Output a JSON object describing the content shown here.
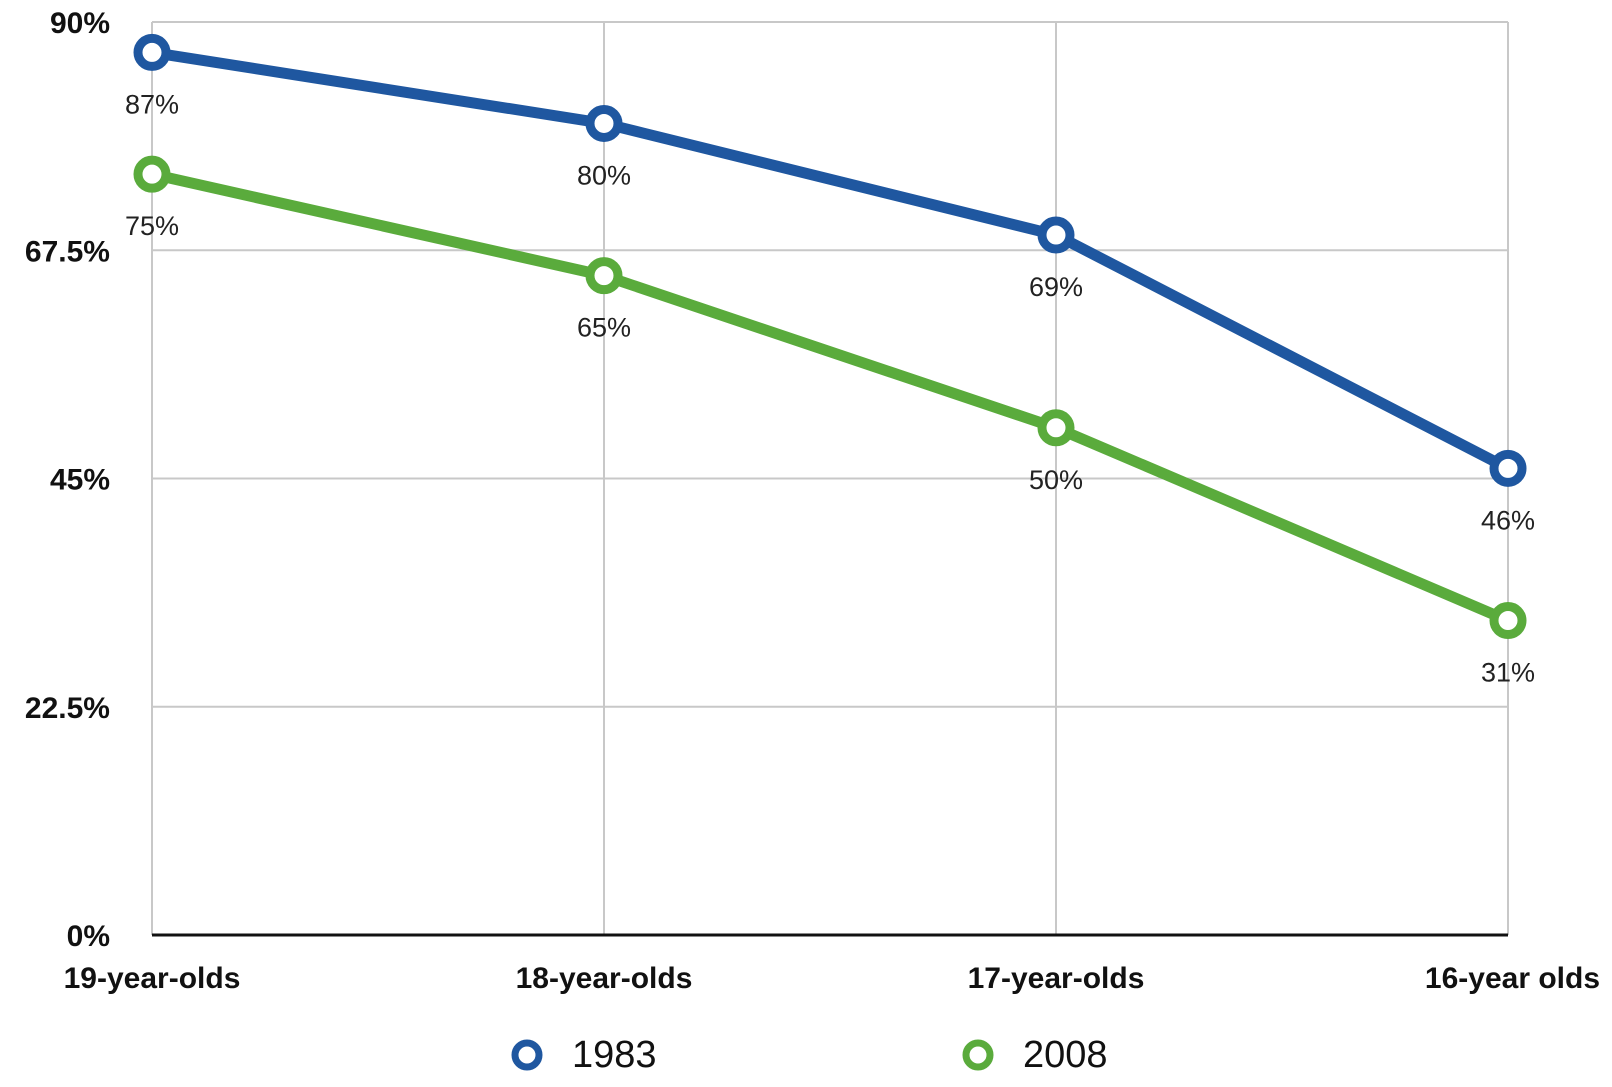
{
  "chart_data": {
    "type": "line",
    "categories": [
      "19-year-olds",
      "18-year-olds",
      "17-year-olds",
      "16-year olds"
    ],
    "series": [
      {
        "name": "1983",
        "values": [
          87,
          80,
          69,
          46
        ],
        "labels": [
          "87%",
          "80%",
          "69%",
          "46%"
        ],
        "color": "#1f57a0"
      },
      {
        "name": "2008",
        "values": [
          75,
          65,
          50,
          31
        ],
        "labels": [
          "75%",
          "65%",
          "50%",
          "31%"
        ],
        "color": "#5aab3c"
      }
    ],
    "y_ticks": [
      0,
      22.5,
      45,
      67.5,
      90
    ],
    "y_tick_labels": [
      "0%",
      "22.5%",
      "45%",
      "67.5%",
      "90%"
    ],
    "ylim": [
      0,
      90
    ],
    "grid": true,
    "legend_position": "bottom",
    "gridline_color": "#c8c8c8",
    "axis_color": "#111111"
  }
}
